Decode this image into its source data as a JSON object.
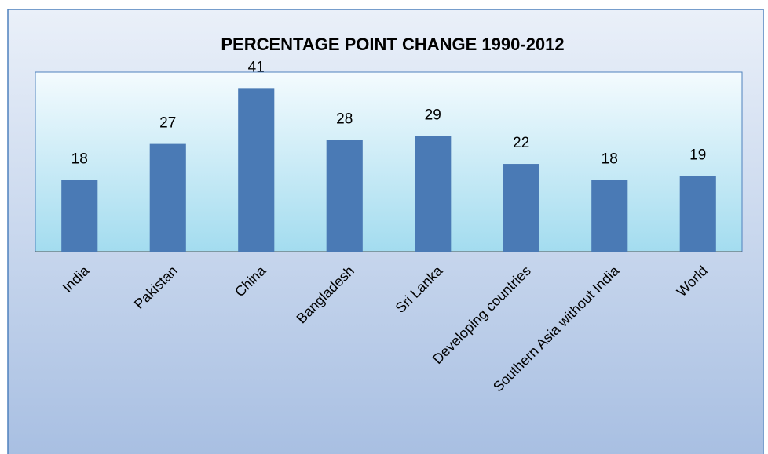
{
  "chart_data": {
    "type": "bar",
    "title": "PERCENTAGE POINT CHANGE 1990-2012",
    "categories": [
      "India",
      "Pakistan",
      "China",
      "Bangladesh",
      "Sri Lanka",
      "Developing countries",
      "Southern Asia without India",
      "World"
    ],
    "values": [
      18,
      27,
      41,
      28,
      29,
      22,
      18,
      19
    ],
    "color": "#4a7ab5",
    "ylim": [
      0,
      45
    ]
  }
}
